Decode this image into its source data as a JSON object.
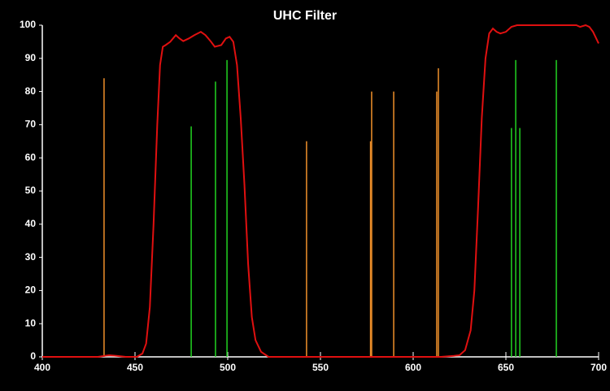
{
  "chart_data": {
    "type": "line",
    "title": "UHC Filter",
    "xlim": [
      400,
      700
    ],
    "ylim": [
      0,
      100
    ],
    "xticks": [
      400,
      450,
      500,
      550,
      600,
      650,
      700
    ],
    "yticks": [
      0,
      10,
      20,
      30,
      40,
      50,
      60,
      70,
      80,
      90,
      100
    ],
    "background": "#000000",
    "axis_color": "#ffffff",
    "series": [
      {
        "type": "line",
        "color": "#e01010",
        "x": [
          400,
          430,
          436,
          440,
          445,
          451,
          454,
          456,
          458,
          460,
          462,
          463.5,
          465,
          466.5,
          469,
          472,
          474,
          476,
          479,
          482,
          485.5,
          488,
          491,
          493,
          496.5,
          499,
          501,
          503,
          505,
          507,
          509,
          511,
          513,
          515,
          518,
          522,
          600,
          615,
          622,
          625,
          628,
          631,
          633,
          635,
          637,
          639,
          641,
          643,
          645,
          647,
          650,
          653,
          656,
          660,
          670,
          680,
          688,
          690,
          693,
          695,
          697,
          700
        ],
        "values": [
          0,
          0,
          0.5,
          0.3,
          0,
          0,
          1,
          4,
          15,
          40,
          70,
          88,
          93.5,
          94,
          95,
          97,
          96,
          95.2,
          96,
          97,
          98,
          97,
          95,
          93.5,
          94,
          96,
          96.5,
          95,
          88,
          72,
          52,
          28,
          12,
          5,
          1.5,
          0,
          0,
          0,
          0.3,
          0.5,
          2,
          8,
          20,
          45,
          72,
          90,
          97.5,
          99,
          98,
          97.5,
          98,
          99.5,
          100,
          100,
          100,
          100,
          100,
          99.5,
          100,
          99.5,
          98,
          94.5
        ]
      },
      {
        "type": "stem",
        "color": "#f0902a",
        "x": [
          433.3,
          542.5,
          577,
          577.6,
          589.5,
          612.7,
          613.6
        ],
        "values": [
          84,
          65,
          65,
          80,
          80,
          80,
          87
        ]
      },
      {
        "type": "stem",
        "color": "#22d322",
        "x": [
          480.3,
          493.4,
          499.6,
          653,
          655.3,
          657.5,
          677.2
        ],
        "values": [
          69.5,
          83,
          89.5,
          69,
          89.5,
          69,
          89.5
        ]
      }
    ]
  }
}
